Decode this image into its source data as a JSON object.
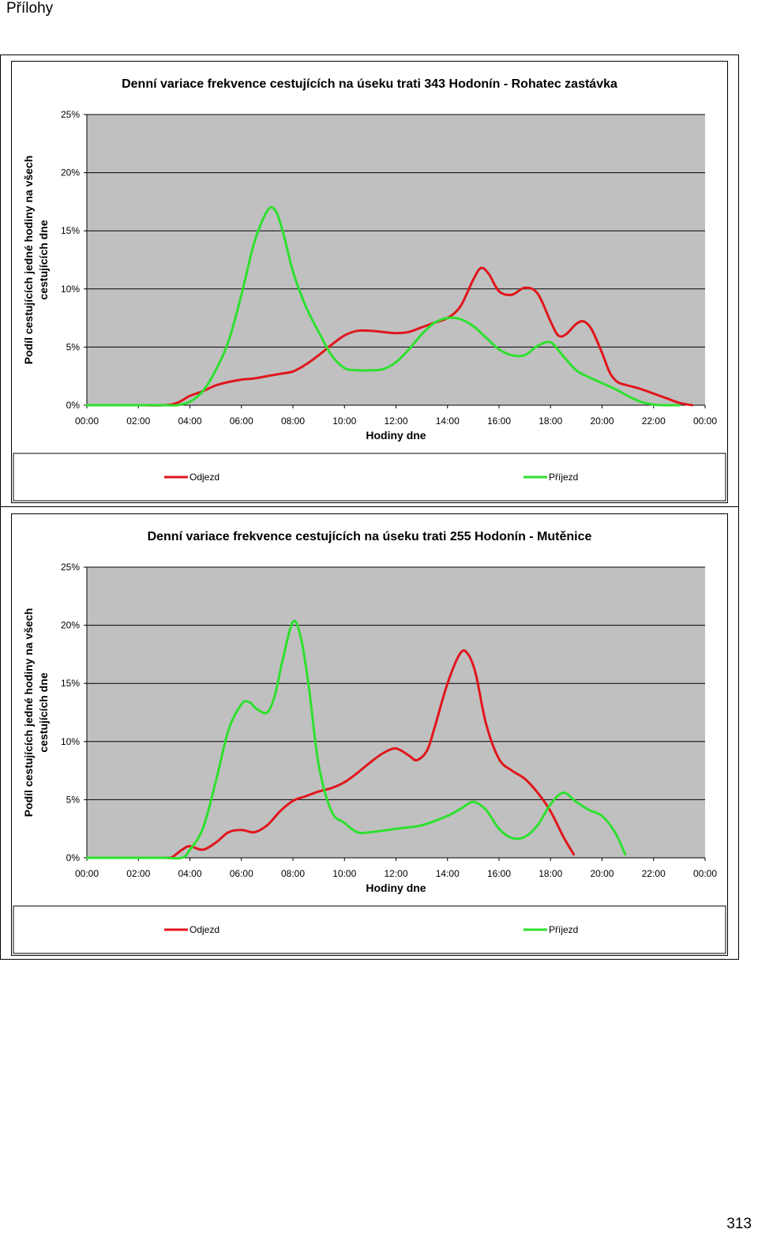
{
  "page": {
    "header": "Přílohy",
    "page_number": "313"
  },
  "chart_data": [
    {
      "type": "line",
      "title": "Denní variace frekvence cestujících na úseku trati 343 Hodonín - Rohatec zastávka",
      "xlabel": "Hodiny dne",
      "ylabel": "Podíl cestujících jedné hodiny na všech cestujících dne",
      "x_ticks": [
        "00:00",
        "02:00",
        "04:00",
        "06:00",
        "08:00",
        "10:00",
        "12:00",
        "14:00",
        "16:00",
        "18:00",
        "20:00",
        "22:00",
        "00:00"
      ],
      "y_ticks": [
        "0%",
        "5%",
        "10%",
        "15%",
        "20%",
        "25%"
      ],
      "xlim": [
        0,
        24
      ],
      "ylim": [
        0,
        25
      ],
      "grid": true,
      "legend": "bottom",
      "series": [
        {
          "name": "Odjezd",
          "color": "#e0161c",
          "x": [
            0,
            1,
            2,
            3,
            3.5,
            4,
            4.5,
            5,
            5.5,
            6,
            6.5,
            7,
            7.5,
            8,
            8.5,
            9,
            9.5,
            10,
            10.5,
            11,
            11.5,
            12,
            12.5,
            13,
            13.5,
            14,
            14.5,
            15,
            15.3,
            15.6,
            16,
            16.5,
            17,
            17.5,
            18,
            18.3,
            18.6,
            19,
            19.3,
            19.6,
            20,
            20.3,
            20.6,
            21,
            21.5,
            22,
            22.5,
            23,
            23.5
          ],
          "y": [
            0,
            0,
            0,
            0,
            0.2,
            0.8,
            1.2,
            1.7,
            2.0,
            2.2,
            2.3,
            2.5,
            2.7,
            2.9,
            3.5,
            4.3,
            5.2,
            6.0,
            6.4,
            6.4,
            6.3,
            6.2,
            6.3,
            6.7,
            7.1,
            7.5,
            8.5,
            10.8,
            11.8,
            11.3,
            9.8,
            9.5,
            10.1,
            9.6,
            7.2,
            6.0,
            6.1,
            7.0,
            7.2,
            6.5,
            4.5,
            2.8,
            2.0,
            1.7,
            1.4,
            1.0,
            0.6,
            0.2,
            0
          ]
        },
        {
          "name": "Příjezd",
          "color": "#2ee02e",
          "x": [
            0,
            1,
            2,
            3,
            3.5,
            4,
            4.5,
            5,
            5.5,
            6,
            6.5,
            7,
            7.3,
            7.6,
            8,
            8.5,
            9,
            9.5,
            10,
            10.5,
            11,
            11.5,
            12,
            12.5,
            13,
            13.5,
            14,
            14.5,
            15,
            15.5,
            16,
            16.5,
            17,
            17.5,
            18,
            18.5,
            19,
            19.5,
            20,
            20.5,
            21,
            21.5,
            22,
            22.5,
            23
          ],
          "y": [
            0,
            0,
            0,
            0,
            0,
            0.3,
            1.2,
            3.0,
            5.5,
            9.5,
            14.0,
            16.7,
            16.8,
            15.0,
            11.5,
            8.5,
            6.3,
            4.3,
            3.2,
            3.0,
            3.0,
            3.1,
            3.7,
            4.8,
            6.1,
            7.1,
            7.5,
            7.4,
            6.8,
            5.8,
            4.8,
            4.3,
            4.3,
            5.1,
            5.4,
            4.2,
            3.0,
            2.4,
            1.9,
            1.4,
            0.8,
            0.3,
            0.05,
            0,
            0
          ]
        }
      ]
    },
    {
      "type": "line",
      "title": "Denní variace frekvence cestujících na úseku trati 255 Hodonín - Mutěnice",
      "xlabel": "Hodiny dne",
      "ylabel": "Podíl cestujících jedné hodiny na všech cestujících dne",
      "x_ticks": [
        "00:00",
        "02:00",
        "04:00",
        "06:00",
        "08:00",
        "10:00",
        "12:00",
        "14:00",
        "16:00",
        "18:00",
        "20:00",
        "22:00",
        "00:00"
      ],
      "y_ticks": [
        "0%",
        "5%",
        "10%",
        "15%",
        "20%",
        "25%"
      ],
      "xlim": [
        0,
        24
      ],
      "ylim": [
        0,
        25
      ],
      "grid": true,
      "legend": "bottom",
      "series": [
        {
          "name": "Odjezd",
          "color": "#e0161c",
          "x": [
            0,
            1,
            2,
            3,
            3.3,
            3.7,
            4,
            4.5,
            5,
            5.5,
            6,
            6.5,
            7,
            7.5,
            8,
            8.5,
            9,
            9.5,
            10,
            10.5,
            11,
            11.5,
            12,
            12.5,
            12.8,
            13.2,
            13.5,
            14,
            14.5,
            14.8,
            15.1,
            15.5,
            16,
            16.5,
            17,
            17.5,
            18,
            18.5,
            18.9
          ],
          "y": [
            0,
            0,
            0,
            0,
            0.05,
            0.7,
            1.0,
            0.7,
            1.3,
            2.2,
            2.4,
            2.2,
            2.8,
            4.0,
            4.9,
            5.3,
            5.7,
            6.0,
            6.5,
            7.3,
            8.2,
            9.0,
            9.4,
            8.8,
            8.4,
            9.2,
            11.2,
            15.0,
            17.6,
            17.5,
            15.8,
            11.5,
            8.5,
            7.5,
            6.8,
            5.6,
            4.0,
            1.8,
            0.3
          ]
        },
        {
          "name": "Příjezd",
          "color": "#2ee02e",
          "x": [
            0,
            1,
            2,
            3,
            3.7,
            4,
            4.5,
            5,
            5.5,
            6,
            6.3,
            6.6,
            7,
            7.3,
            7.6,
            8,
            8.3,
            8.6,
            9,
            9.5,
            10,
            10.5,
            11,
            12,
            13,
            14,
            14.5,
            15,
            15.5,
            16,
            16.5,
            17,
            17.5,
            18,
            18.5,
            19,
            19.5,
            20,
            20.5,
            20.9
          ],
          "y": [
            0,
            0,
            0,
            0,
            0,
            0.7,
            2.5,
            6.5,
            11.0,
            13.2,
            13.4,
            12.8,
            12.5,
            14.0,
            17.0,
            20.3,
            19.0,
            15.0,
            8.0,
            4.0,
            3.0,
            2.2,
            2.2,
            2.5,
            2.8,
            3.6,
            4.2,
            4.8,
            4.1,
            2.5,
            1.7,
            1.8,
            2.8,
            4.6,
            5.6,
            4.8,
            4.1,
            3.6,
            2.2,
            0.3
          ]
        }
      ]
    }
  ]
}
